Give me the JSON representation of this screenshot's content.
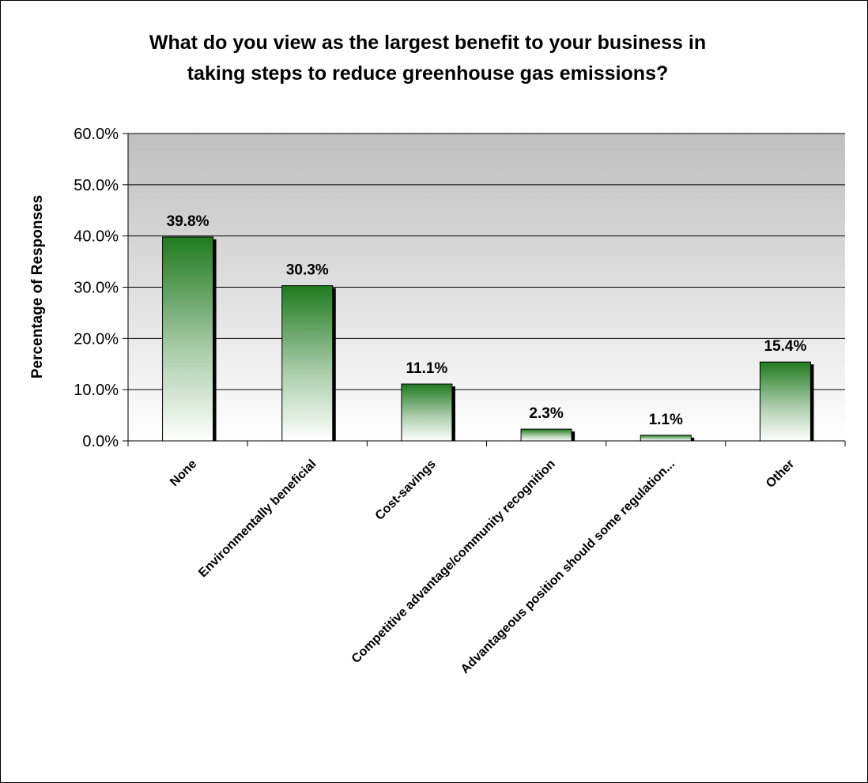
{
  "chart_data": {
    "type": "bar",
    "title": "What do you view as the largest benefit to your business in taking steps to reduce greenhouse gas emissions?",
    "title_lines": [
      "What do you view as the largest benefit to your business in",
      "taking steps to reduce greenhouse gas emissions?"
    ],
    "xlabel": "",
    "ylabel": "Percentage of Responses",
    "categories": [
      "None",
      "Environmentally beneficial",
      "Cost-savings",
      "Competitive advantage/community recognition",
      "Advantageous position should some regulation...",
      "Other"
    ],
    "values": [
      39.8,
      30.3,
      11.1,
      2.3,
      1.1,
      15.4
    ],
    "data_labels": [
      "39.8%",
      "30.3%",
      "11.1%",
      "2.3%",
      "1.1%",
      "15.4%"
    ],
    "ylim": [
      0,
      60
    ],
    "yticks": [
      0,
      10,
      20,
      30,
      40,
      50,
      60
    ],
    "ytick_labels": [
      "0.0%",
      "10.0%",
      "20.0%",
      "30.0%",
      "40.0%",
      "50.0%",
      "60.0%"
    ],
    "grid": true,
    "legend": "none",
    "colors": {
      "bar_top": "#1f7a1f",
      "bar_bottom": "#ffffff",
      "plot_bg_top": "#c0c0c0",
      "plot_bg_bottom": "#ffffff",
      "gridline": "#000000",
      "bar_shadow": "#000000"
    }
  }
}
